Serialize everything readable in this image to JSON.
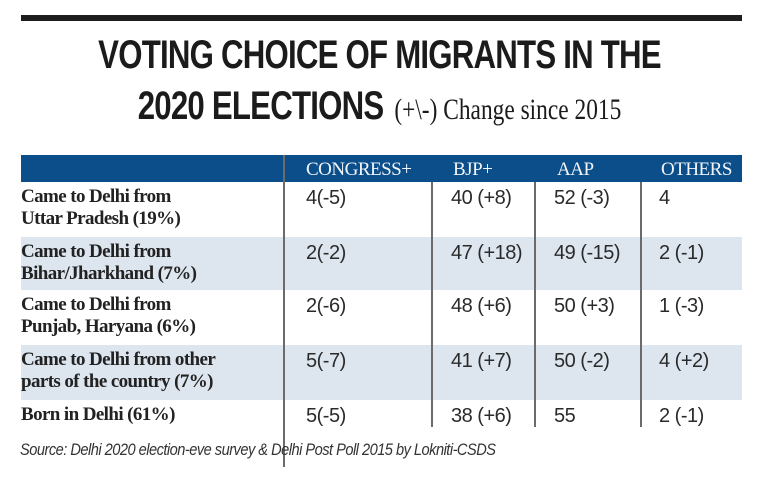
{
  "chart_data": {
    "type": "table",
    "title_line1": "VOTING CHOICE OF MIGRANTS IN THE",
    "title_line2": "2020 ELECTIONS",
    "subtitle": "(+\\-) Change since 2015",
    "columns": [
      "",
      "CONGRESS+",
      "BJP+",
      "AAP",
      "OTHERS"
    ],
    "rows": [
      {
        "label_line1": "Came to Delhi from",
        "label_line2": "Uttar Pradesh (19%)",
        "values": [
          "4(-5)",
          "40 (+8)",
          "52 (-3)",
          "4"
        ]
      },
      {
        "label_line1": "Came to Delhi from",
        "label_line2": "Bihar/Jharkhand (7%)",
        "values": [
          "2(-2)",
          "47 (+18)",
          "49 (-15)",
          "2 (-1)"
        ]
      },
      {
        "label_line1": "Came to Delhi from",
        "label_line2": "Punjab, Haryana (6%)",
        "values": [
          "2(-6)",
          "48 (+6)",
          "50 (+3)",
          "1 (-3)"
        ]
      },
      {
        "label_line1": "Came to Delhi from other",
        "label_line2": "parts of the country (7%)",
        "values": [
          "5(-7)",
          "41 (+7)",
          "50 (-2)",
          "4 (+2)"
        ]
      },
      {
        "label_line1": "Born in Delhi (61%)",
        "label_line2": "",
        "values": [
          "5(-5)",
          "38 (+6)",
          "55",
          "2 (-1)"
        ]
      }
    ],
    "source": "Source: Delhi 2020 election-eve survey & Delhi Post Poll 2015 by Lokniti-CSDS",
    "colors": {
      "header_bg": "#0c4e89",
      "header_text": "#f2f6fb",
      "alt_row_bg": "#dde5ef"
    }
  }
}
